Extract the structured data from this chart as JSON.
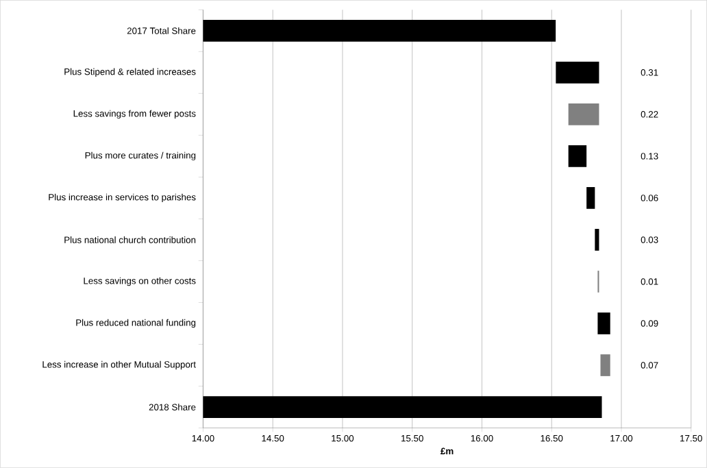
{
  "chart_data": {
    "type": "bar",
    "orientation": "horizontal",
    "categories": [
      "2017 Total Share",
      "Plus Stipend & related increases",
      "Less savings from fewer posts",
      "Plus more curates / training",
      "Plus increase in services to parishes",
      "Plus national church contribution",
      "Less savings on other costs",
      "Plus reduced national funding",
      "Less increase in other Mutual Support",
      "2018 Share"
    ],
    "values": [
      16.53,
      0.31,
      -0.22,
      0.13,
      0.06,
      0.03,
      -0.01,
      0.09,
      -0.07,
      16.86
    ],
    "base": [
      null,
      16.53,
      16.84,
      16.62,
      16.75,
      16.81,
      16.84,
      16.83,
      16.92,
      null
    ],
    "value_labels": [
      null,
      "0.31",
      "0.22",
      "0.13",
      "0.06",
      "0.03",
      "0.01",
      "0.09",
      "0.07",
      null
    ],
    "colors": [
      "#000000",
      "#000000",
      "#808080",
      "#000000",
      "#000000",
      "#000000",
      "#808080",
      "#000000",
      "#808080",
      "#000000"
    ],
    "xlim": [
      14,
      17.5
    ],
    "xticks": [
      {
        "value": 14,
        "label": "14.00"
      },
      {
        "value": 14.5,
        "label": "14.50"
      },
      {
        "value": 15,
        "label": "15.00"
      },
      {
        "value": 15.5,
        "label": "15.50"
      },
      {
        "value": 16,
        "label": "16.00"
      },
      {
        "value": 16.5,
        "label": "16.50"
      },
      {
        "value": 17,
        "label": "17.00"
      },
      {
        "value": 17.5,
        "label": "17.50"
      }
    ],
    "xlabel": "£m",
    "grid": "x"
  }
}
